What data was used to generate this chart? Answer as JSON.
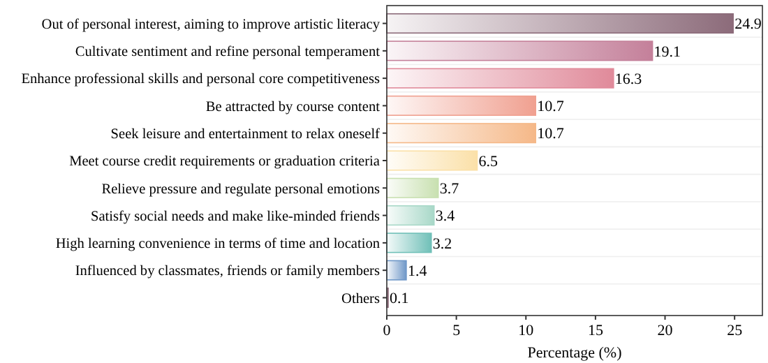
{
  "chart_data": {
    "type": "bar",
    "orientation": "horizontal",
    "xlabel": "Percentage (%)",
    "categories": [
      "Out of personal interest, aiming to improve artistic literacy",
      "Cultivate sentiment and refine personal temperament",
      "Enhance professional skills and personal core competitiveness",
      "Be attracted by course content",
      "Seek leisure and entertainment to relax oneself",
      "Meet course credit requirements or graduation criteria",
      "Relieve pressure and regulate personal emotions",
      "Satisfy social needs and make like-minded friends",
      "High learning convenience in terms of time and location",
      "Influenced by classmates, friends or family members",
      "Others"
    ],
    "values": [
      24.9,
      19.1,
      16.3,
      10.7,
      10.7,
      6.5,
      3.7,
      3.4,
      3.2,
      1.4,
      0.1
    ],
    "colors": [
      "#8c6b7a",
      "#c4809a",
      "#e08a9a",
      "#f0a090",
      "#f5b888",
      "#fbe0a8",
      "#c8e0b0",
      "#a8d8c8",
      "#70c0b8",
      "#7098c8",
      "#8c6b7a"
    ],
    "xlim": [
      0,
      27
    ],
    "xticks": [
      0,
      5,
      10,
      15,
      20,
      25
    ],
    "grid": "y",
    "data_labels": true
  }
}
